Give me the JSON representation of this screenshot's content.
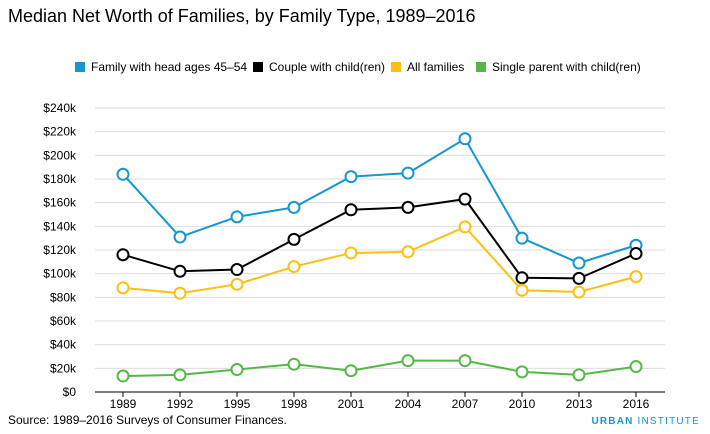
{
  "title": "Median Net Worth of Families, by Family Type, 1989–2016",
  "source": "Source: 1989–2016 Surveys of Consumer Finances.",
  "brand": {
    "part1": "URBAN",
    "part2": " INSTITUTE"
  },
  "chart_data": {
    "type": "line",
    "title": "Median Net Worth of Families, by Family Type, 1989–2016",
    "x": [
      "1989",
      "1992",
      "1995",
      "1998",
      "2001",
      "2004",
      "2007",
      "2010",
      "2013",
      "2016"
    ],
    "ylim": [
      0,
      240000
    ],
    "yticks": [
      0,
      20000,
      40000,
      60000,
      80000,
      100000,
      120000,
      140000,
      160000,
      180000,
      200000,
      220000,
      240000
    ],
    "ytick_labels": [
      "$0",
      "$20k",
      "$40k",
      "$60k",
      "$80k",
      "$100k",
      "$120k",
      "$140k",
      "$160k",
      "$180k",
      "$200k",
      "$220k",
      "$240k"
    ],
    "grid": true,
    "legend_position": "top",
    "series": [
      {
        "name": "Family with head ages 45–54",
        "color": "#1696d2",
        "values": [
          184000,
          131000,
          148000,
          156000,
          182000,
          185000,
          214000,
          130000,
          109000,
          124000
        ]
      },
      {
        "name": "Couple with child(ren)",
        "color": "#000000",
        "values": [
          116000,
          102000,
          103500,
          129000,
          154000,
          156000,
          163000,
          96500,
          96000,
          117000
        ]
      },
      {
        "name": "All families",
        "color": "#fdbf11",
        "values": [
          88000,
          83500,
          91000,
          106000,
          117500,
          118500,
          139500,
          86000,
          84500,
          97500
        ]
      },
      {
        "name": "Single parent with child(ren)",
        "color": "#55b748",
        "values": [
          13500,
          14500,
          19000,
          23500,
          18000,
          26500,
          26500,
          17000,
          14500,
          21500
        ]
      }
    ]
  }
}
